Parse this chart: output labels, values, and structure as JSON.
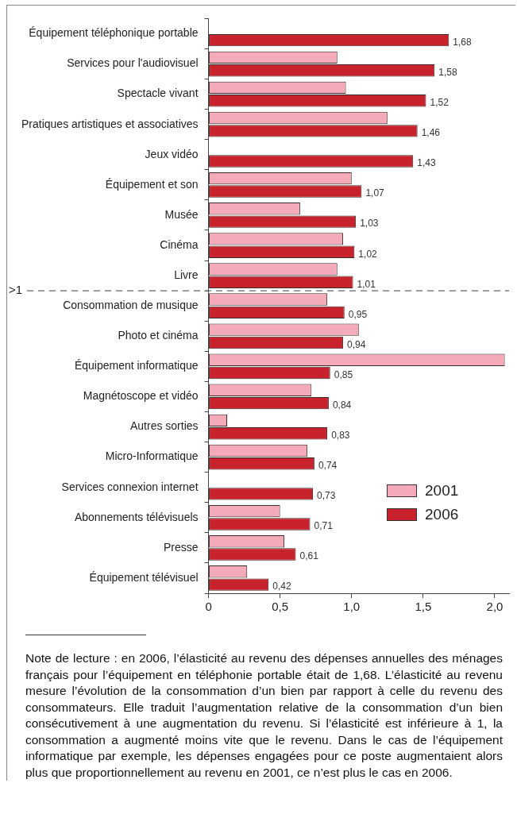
{
  "chart_data": {
    "type": "bar",
    "orientation": "horizontal",
    "categories": [
      "Équipement téléphonique portable",
      "Services pour l'audiovisuel",
      "Spectacle vivant",
      "Pratiques artistiques et associatives",
      "Jeux vidéo",
      "Équipement et son",
      "Musée",
      "Cinéma",
      "Livre",
      "Consommation de musique",
      "Photo et cinéma",
      "Équipement informatique",
      "Magnétoscope et vidéo",
      "Autres sorties",
      "Micro-Informatique",
      "Services connexion internet",
      "Abonnements télévisuels",
      "Presse",
      "Équipement télévisuel"
    ],
    "series": [
      {
        "name": "2001",
        "color": "#f4aab9",
        "values": [
          null,
          0.9,
          0.96,
          1.25,
          null,
          1.0,
          0.64,
          0.94,
          0.9,
          0.83,
          1.05,
          2.07,
          0.72,
          0.13,
          0.69,
          null,
          0.5,
          0.53,
          0.27
        ]
      },
      {
        "name": "2006",
        "color": "#c8232c",
        "values": [
          1.68,
          1.58,
          1.52,
          1.46,
          1.43,
          1.07,
          1.03,
          1.02,
          1.01,
          0.95,
          0.94,
          0.85,
          0.84,
          0.83,
          0.74,
          0.73,
          0.71,
          0.61,
          0.42
        ],
        "value_labels": [
          "1,68",
          "1,58",
          "1,52",
          "1,46",
          "1,43",
          "1,07",
          "1,03",
          "1,02",
          "1,01",
          "0,95",
          "0,94",
          "0,85",
          "0,84",
          "0,83",
          "0,74",
          "0,73",
          "0,71",
          "0,61",
          "0,42"
        ]
      }
    ],
    "xlim": [
      0,
      2.1
    ],
    "xticks": [
      0,
      {
        "value": 0.5,
        "label": "0,5"
      },
      {
        "value": 1,
        "label": "1,0"
      },
      {
        "value": 1.5,
        "label": "1,5"
      },
      {
        "value": 2,
        "label": "2,0"
      }
    ],
    "line_style": "dashed",
    "grid": false,
    "legend": "bottom right",
    "annotations": [
      ">1",
      "Note de lecture : en 2006, l’élasticité au revenu des dépenses annuelles des ménages français pour l’équipement en téléphonie portable était de 1,68. L’élasticité au revenu mesure l’évolution de la consommation d’un bien par rapport à celle du revenu des consommateurs. Elle traduit l’augmentation relative de la consommation d’un bien consécutivement à une augmentation du revenu. Si l’élasticité est inférieure à 1, la consommation a augmenté moins vite que le revenu. Dans le cas de l’équipement informatique par exemple, les dépenses engagées pour ce poste augmentaient alors plus que proportionnellement au revenu en 2001, ce n’est plus le cas en 2006."
    ]
  }
}
